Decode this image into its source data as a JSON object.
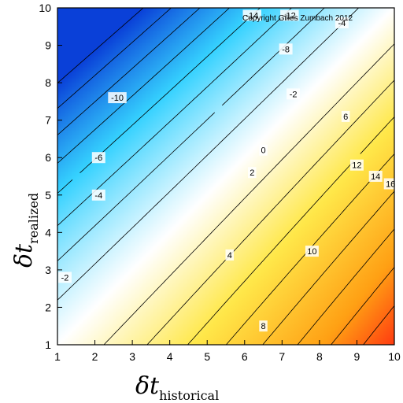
{
  "chart_data": {
    "type": "contour",
    "title": "",
    "copyright": "Copyright Gilles Zumbach 2012",
    "xlabel": {
      "symbol": "δt",
      "subscript": "historical"
    },
    "ylabel": {
      "symbol": "δt",
      "subscript": "realized"
    },
    "xlim": [
      1,
      10
    ],
    "ylim": [
      1,
      10
    ],
    "xticks": [
      "1",
      "2",
      "3",
      "4",
      "5",
      "6",
      "7",
      "8",
      "9",
      "10"
    ],
    "yticks": [
      "1",
      "2",
      "3",
      "4",
      "5",
      "6",
      "7",
      "8",
      "9",
      "10"
    ],
    "colormap": "blue-white-yellow-red",
    "colors": {
      "low": "#0a40d8",
      "mid_low": "#36d2ff",
      "zero": "#ffffff",
      "mid_high": "#ffe84a",
      "high": "#ff3a10"
    },
    "value_range": [
      -16,
      18
    ],
    "contour_levels": [
      -16,
      -14,
      -12,
      -10,
      -8,
      -6,
      -4,
      -2,
      0,
      2,
      4,
      6,
      8,
      10,
      12,
      14,
      16
    ],
    "contour_labels": [
      {
        "text": "-14",
        "x": 6.2,
        "y": 9.8
      },
      {
        "text": "-12",
        "x": 7.2,
        "y": 9.8
      },
      {
        "text": "-8",
        "x": 7.1,
        "y": 8.9
      },
      {
        "text": "-4",
        "x": 8.6,
        "y": 9.6
      },
      {
        "text": "-10",
        "x": 2.6,
        "y": 7.6
      },
      {
        "text": "-6",
        "x": 2.1,
        "y": 6.0
      },
      {
        "text": "-4",
        "x": 2.1,
        "y": 5.0
      },
      {
        "text": "-2",
        "x": 1.2,
        "y": 2.8
      },
      {
        "text": "-2",
        "x": 7.3,
        "y": 7.7
      },
      {
        "text": "0",
        "x": 6.5,
        "y": 6.2
      },
      {
        "text": "2",
        "x": 6.2,
        "y": 5.6
      },
      {
        "text": "4",
        "x": 5.6,
        "y": 3.4
      },
      {
        "text": "6",
        "x": 8.7,
        "y": 7.1
      },
      {
        "text": "8",
        "x": 6.5,
        "y": 1.5
      },
      {
        "text": "10",
        "x": 7.8,
        "y": 3.5
      },
      {
        "text": "12",
        "x": 9.0,
        "y": 5.8
      },
      {
        "text": "14",
        "x": 9.5,
        "y": 5.5
      },
      {
        "text": "16",
        "x": 9.9,
        "y": 5.3
      }
    ]
  }
}
